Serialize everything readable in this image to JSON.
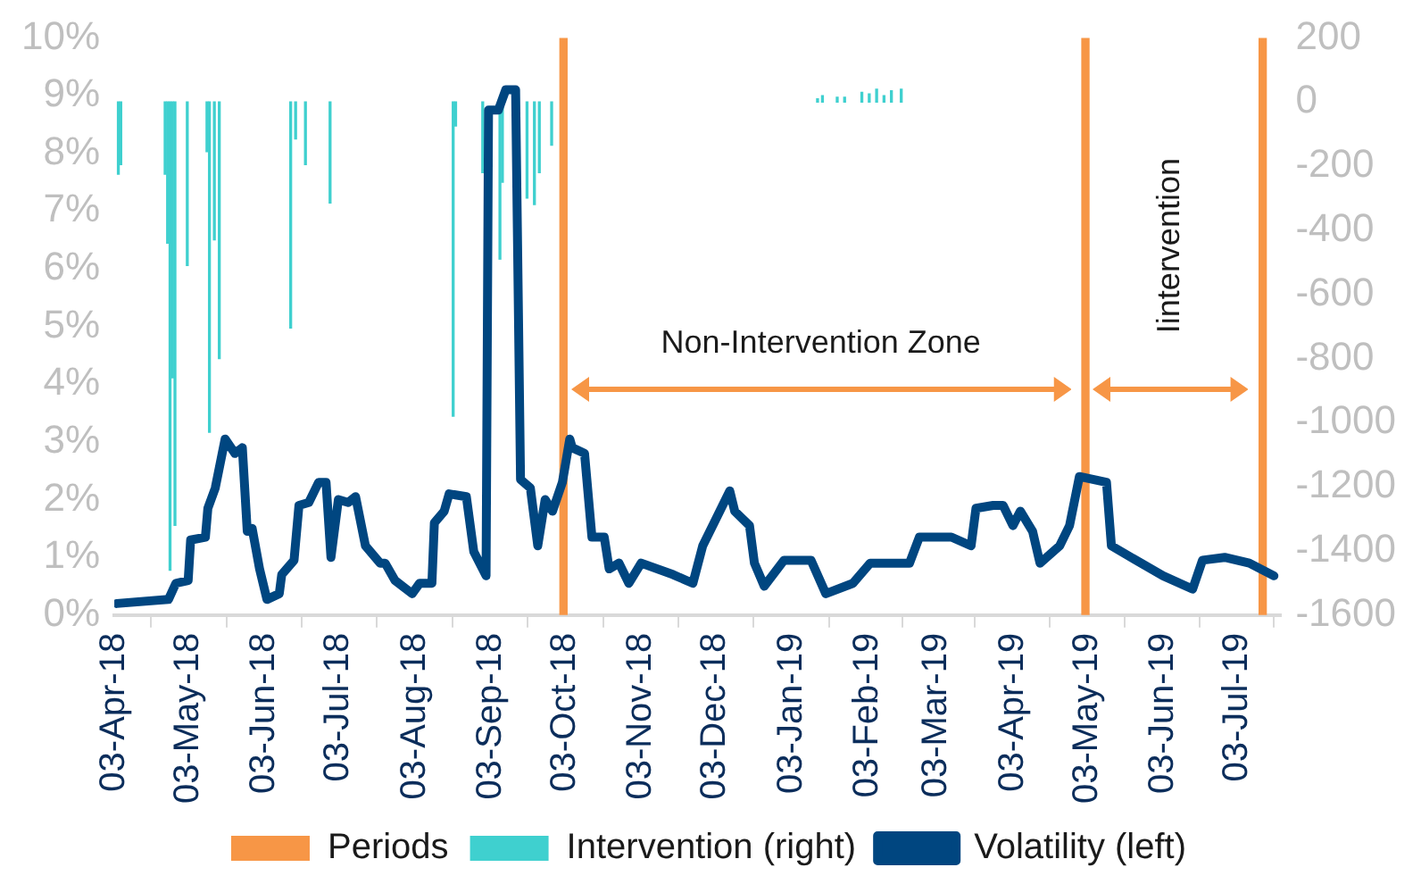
{
  "chart_data": {
    "type": "line",
    "xlim": [
      "2018-04-03",
      "2019-07-21"
    ],
    "xticks": [
      {
        "value": "2018-04-03",
        "label": "03-Apr-18"
      },
      {
        "value": "2018-05-03",
        "label": "03-May-18"
      },
      {
        "value": "2018-06-03",
        "label": "03-Jun-18"
      },
      {
        "value": "2018-07-03",
        "label": "03-Jul-18"
      },
      {
        "value": "2018-08-03",
        "label": "03-Aug-18"
      },
      {
        "value": "2018-09-03",
        "label": "03-Sep-18"
      },
      {
        "value": "2018-10-03",
        "label": "03-Oct-18"
      },
      {
        "value": "2018-11-03",
        "label": "03-Nov-18"
      },
      {
        "value": "2018-12-03",
        "label": "03-Dec-18"
      },
      {
        "value": "2019-01-03",
        "label": "03-Jan-19"
      },
      {
        "value": "2019-02-03",
        "label": "03-Feb-19"
      },
      {
        "value": "2019-03-03",
        "label": "03-Mar-19"
      },
      {
        "value": "2019-04-03",
        "label": "03-Apr-19"
      },
      {
        "value": "2019-05-03",
        "label": "03-May-19"
      },
      {
        "value": "2019-06-03",
        "label": "03-Jun-19"
      },
      {
        "value": "2019-07-03",
        "label": "03-Jul-19"
      }
    ],
    "ylim": [
      0,
      10
    ],
    "yticks": [
      {
        "value": 0,
        "label": "0%"
      },
      {
        "value": 1,
        "label": "1%"
      },
      {
        "value": 2,
        "label": "2%"
      },
      {
        "value": 3,
        "label": "3%"
      },
      {
        "value": 4,
        "label": "4%"
      },
      {
        "value": 5,
        "label": "5%"
      },
      {
        "value": 6,
        "label": "6%"
      },
      {
        "value": 7,
        "label": "7%"
      },
      {
        "value": 8,
        "label": "8%"
      },
      {
        "value": 9,
        "label": "9%"
      },
      {
        "value": 10,
        "label": "10%"
      }
    ],
    "y2lim": [
      -1600,
      200
    ],
    "y2ticks": [
      -1600,
      -1400,
      -1200,
      -1000,
      -800,
      -600,
      -400,
      -200,
      0,
      200
    ],
    "grid": false,
    "legend": "bottom",
    "series": [
      {
        "name": "Periods",
        "type": "bar",
        "axis": "y",
        "color": "#f79646",
        "x": [
          "2018-10-01",
          "2019-05-01",
          "2019-07-12"
        ],
        "values": [
          10,
          10,
          10
        ]
      },
      {
        "name": "Intervention (right)",
        "type": "bar",
        "axis": "y2",
        "color": "#3fd0cf",
        "x": [
          "2018-04-05",
          "2018-04-06",
          "2018-04-24",
          "2018-04-25",
          "2018-04-26",
          "2018-04-27",
          "2018-04-28",
          "2018-05-03",
          "2018-05-11",
          "2018-05-12",
          "2018-05-14",
          "2018-05-16",
          "2018-06-14",
          "2018-06-16",
          "2018-06-20",
          "2018-06-30",
          "2018-08-19",
          "2018-08-20",
          "2018-08-31",
          "2018-09-07",
          "2018-09-08",
          "2018-09-18",
          "2018-09-21",
          "2018-09-23",
          "2018-09-28",
          "2019-01-14",
          "2019-01-16",
          "2019-01-22",
          "2019-01-25",
          "2019-02-01",
          "2019-02-04",
          "2019-02-07",
          "2019-02-10",
          "2019-02-13",
          "2019-02-17"
        ],
        "values": [
          -225,
          -195,
          -225,
          -440,
          -1460,
          -860,
          -1320,
          -510,
          -155,
          -1030,
          -430,
          -800,
          -705,
          -115,
          -195,
          -315,
          -980,
          -75,
          -220,
          -490,
          -250,
          -300,
          -320,
          -220,
          -135,
          10,
          20,
          15,
          15,
          30,
          25,
          40,
          20,
          35,
          40
        ]
      },
      {
        "name": "Volatility (left)",
        "axis": "y",
        "color": "#004680",
        "marker": "none",
        "line_style": "solid",
        "x": [
          "2018-04-04",
          "2018-04-25",
          "2018-04-28",
          "2018-05-03",
          "2018-05-04",
          "2018-05-10",
          "2018-05-11",
          "2018-05-14",
          "2018-05-18",
          "2018-05-22",
          "2018-05-25",
          "2018-05-27",
          "2018-05-29",
          "2018-06-01",
          "2018-06-04",
          "2018-06-09",
          "2018-06-10",
          "2018-06-15",
          "2018-06-17",
          "2018-06-21",
          "2018-06-25",
          "2018-06-28",
          "2018-06-30",
          "2018-07-03",
          "2018-07-07",
          "2018-07-10",
          "2018-07-14",
          "2018-07-20",
          "2018-07-22",
          "2018-07-26",
          "2018-08-02",
          "2018-08-05",
          "2018-08-10",
          "2018-08-11",
          "2018-08-15",
          "2018-08-17",
          "2018-08-24",
          "2018-08-27",
          "2018-09-01",
          "2018-09-02",
          "2018-09-06",
          "2018-09-09",
          "2018-09-13",
          "2018-09-15",
          "2018-09-19",
          "2018-09-22",
          "2018-09-25",
          "2018-09-28",
          "2018-10-02",
          "2018-10-05",
          "2018-10-06",
          "2018-10-11",
          "2018-10-14",
          "2018-10-19",
          "2018-10-21",
          "2018-10-25",
          "2018-10-29",
          "2018-11-03",
          "2018-11-16",
          "2018-11-24",
          "2018-11-28",
          "2018-12-09",
          "2018-12-11",
          "2018-12-17",
          "2018-12-19",
          "2018-12-23",
          "2018-12-31",
          "2019-01-11",
          "2019-01-17",
          "2019-01-28",
          "2019-02-04",
          "2019-02-20",
          "2019-02-24",
          "2019-03-09",
          "2019-03-17",
          "2019-03-19",
          "2019-03-26",
          "2019-03-30",
          "2019-04-03",
          "2019-04-06",
          "2019-04-11",
          "2019-04-14",
          "2019-04-22",
          "2019-04-26",
          "2019-04-30",
          "2019-05-11",
          "2019-05-13",
          "2019-05-23",
          "2019-06-03",
          "2019-06-15",
          "2019-06-19",
          "2019-06-28",
          "2019-07-08",
          "2019-07-18"
        ],
        "values": [
          0.2,
          0.27,
          0.55,
          0.6,
          1.3,
          1.35,
          1.85,
          2.2,
          3.05,
          2.8,
          2.9,
          1.45,
          1.5,
          0.8,
          0.27,
          0.37,
          0.7,
          0.95,
          1.9,
          1.95,
          2.3,
          2.3,
          1.0,
          2.0,
          1.95,
          2.05,
          1.2,
          0.9,
          0.9,
          0.6,
          0.37,
          0.55,
          0.55,
          1.6,
          1.8,
          2.1,
          2.05,
          1.1,
          0.68,
          8.75,
          8.75,
          9.1,
          9.1,
          2.35,
          2.2,
          1.2,
          2.0,
          1.8,
          2.3,
          3.05,
          2.9,
          2.8,
          1.35,
          1.35,
          0.8,
          0.9,
          0.55,
          0.9,
          0.7,
          0.55,
          1.2,
          2.15,
          1.8,
          1.55,
          0.9,
          0.5,
          0.95,
          0.95,
          0.37,
          0.55,
          0.9,
          0.9,
          1.35,
          1.35,
          1.2,
          1.85,
          1.9,
          1.9,
          1.55,
          1.8,
          1.45,
          0.9,
          1.2,
          1.55,
          2.4,
          2.3,
          1.2,
          0.95,
          0.68,
          0.45,
          0.95,
          1.0,
          0.9,
          0.68
        ]
      }
    ],
    "annotations": [
      "Non-Intervention Zone",
      "Iintervention"
    ]
  }
}
